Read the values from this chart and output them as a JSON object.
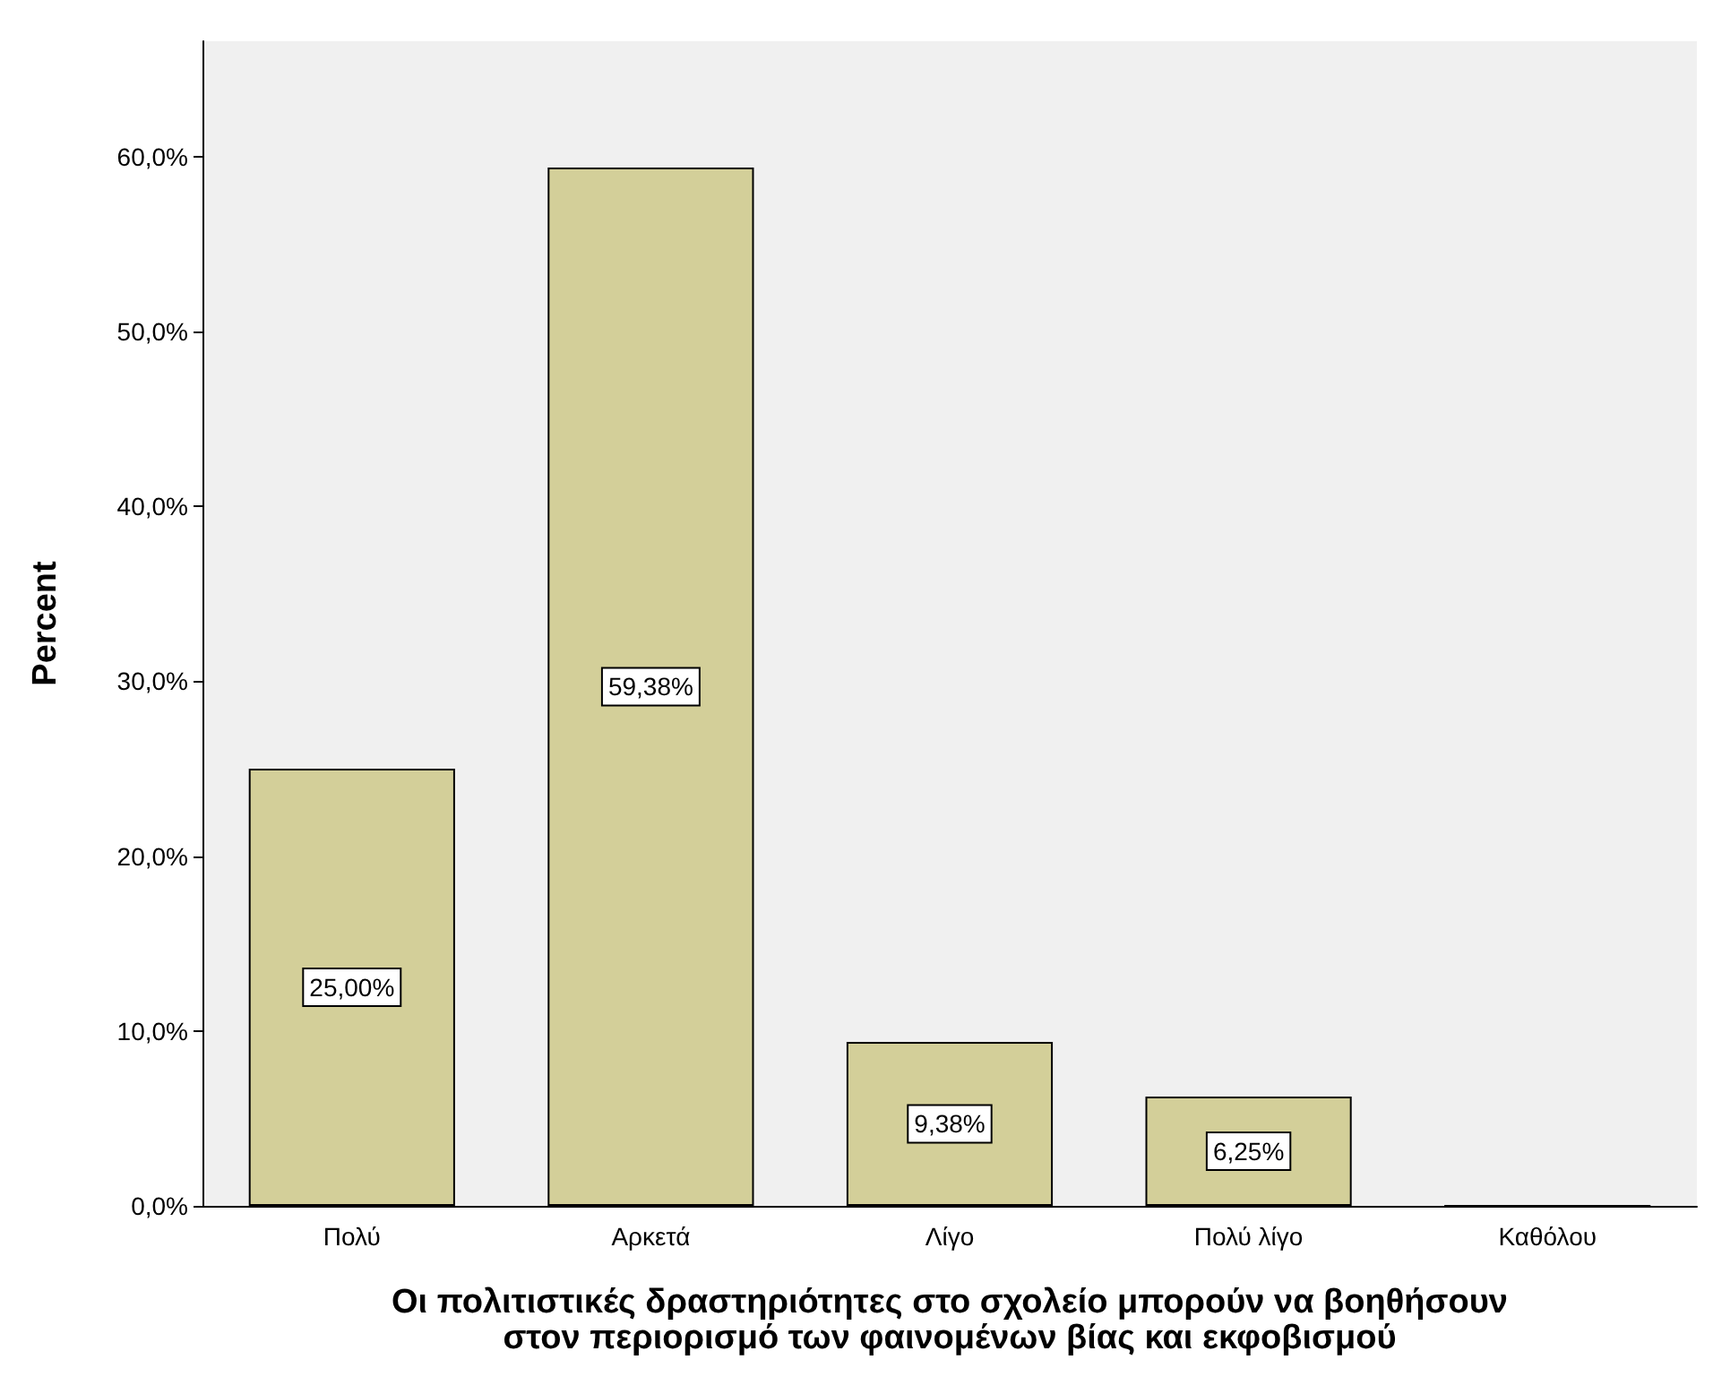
{
  "chart_data": {
    "type": "bar",
    "xlabel": "Οι πολιτιστικές δραστηριότητες στο σχολείο μπορούν να βοηθήσουν\nστον περιορισμό των φαινομένων βίας και εκφοβισμού",
    "ylabel": "Percent",
    "categories": [
      "Πολύ",
      "Αρκετά",
      "Λίγο",
      "Πολύ λίγο",
      "Καθόλου"
    ],
    "values": [
      25.0,
      59.38,
      9.38,
      6.25,
      0
    ],
    "value_labels": [
      "25,00%",
      "59,38%",
      "9,38%",
      "6,25%",
      null
    ],
    "color": "#d3cf99",
    "ylim": [
      0,
      66.6
    ],
    "yticks": [
      {
        "value": 0,
        "label": "0,0%"
      },
      {
        "value": 10,
        "label": "10,0%"
      },
      {
        "value": 20,
        "label": "20,0%"
      },
      {
        "value": 30,
        "label": "30,0%"
      },
      {
        "value": 40,
        "label": "40,0%"
      },
      {
        "value": 50,
        "label": "50,0%"
      },
      {
        "value": 60,
        "label": "60,0%"
      }
    ],
    "grid": false
  }
}
